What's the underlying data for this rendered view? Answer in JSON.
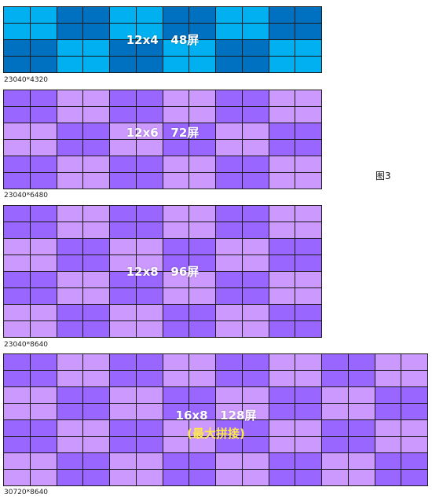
{
  "figure_label": "图3",
  "walls": [
    {
      "cols": 12,
      "rows": 4,
      "label": "12x4   48屏",
      "sublabel": "",
      "resolution": "23040*4320",
      "colors": {
        "light": "#00b0f0",
        "dark": "#0070c0"
      },
      "block": [
        2,
        2
      ]
    },
    {
      "cols": 12,
      "rows": 6,
      "label": "12x6   72屏",
      "sublabel": "",
      "resolution": "23040*6480",
      "colors": {
        "light": "#cc99ff",
        "dark": "#9966ff"
      },
      "block": [
        2,
        2
      ]
    },
    {
      "cols": 12,
      "rows": 8,
      "label": "12x8   96屏",
      "sublabel": "",
      "resolution": "23040*8640",
      "colors": {
        "light": "#cc99ff",
        "dark": "#9966ff"
      },
      "block": [
        2,
        2
      ]
    },
    {
      "cols": 16,
      "rows": 8,
      "label": "16x8   128屏",
      "sublabel": "(最大拼接)",
      "resolution": "30720*8640",
      "colors": {
        "light": "#cc99ff",
        "dark": "#9966ff"
      },
      "block": [
        2,
        2
      ]
    }
  ]
}
